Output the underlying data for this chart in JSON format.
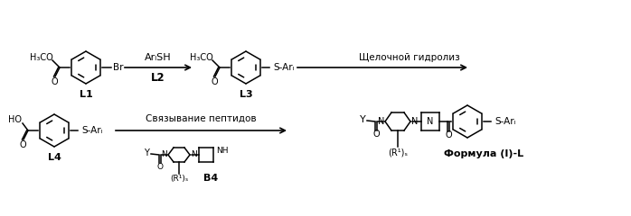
{
  "bg_color": "#ffffff",
  "fig_width": 6.98,
  "fig_height": 2.4,
  "dpi": 100,
  "lc": "#000000",
  "tc": "#000000",
  "labels": {
    "L1": "L1",
    "L2": "L2",
    "L3": "L3",
    "L4": "L4",
    "B4": "B4",
    "formula": "Формула (I)-L"
  },
  "reagents": {
    "step1_top": "ArₗSH",
    "step1_bot": "L2",
    "step2_top": "Щелочной гидролиз",
    "step3_top": "Связывание пептидов"
  }
}
